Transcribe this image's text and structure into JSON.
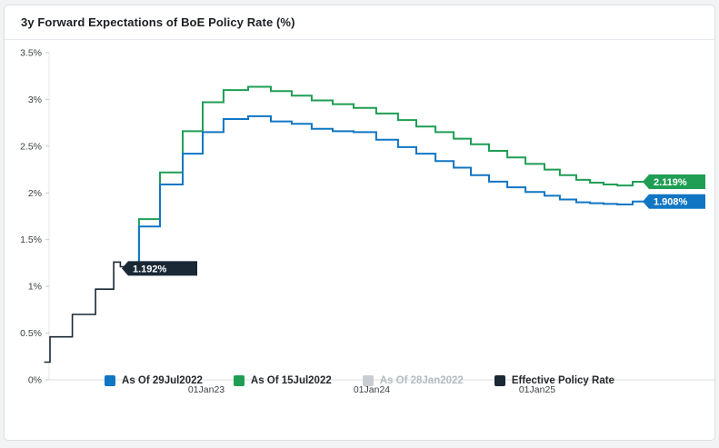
{
  "title": "3y Forward Expectations of BoE Policy Rate (%)",
  "colors": {
    "blue": "#1076c4",
    "green": "#1f9e54",
    "gray": "#c9cdd1",
    "dark": "#1a2835",
    "axis_text": "#3c4045",
    "axis_line": "#e3e7ea",
    "tick_line": "#c7ccd1",
    "baseline": "#d8dce0"
  },
  "chart_data": {
    "type": "line",
    "step": true,
    "title": "3y Forward Expectations of BoE Policy Rate (%)",
    "xlabel": "",
    "ylabel": "%",
    "ylim": [
      0,
      3.5
    ],
    "xlim": [
      2022.0,
      2025.78
    ],
    "grid": false,
    "legend_position": "bottom",
    "yticks": [
      {
        "v": 0.0,
        "label": "0%"
      },
      {
        "v": 0.5,
        "label": "0.5%"
      },
      {
        "v": 1.0,
        "label": "1%"
      },
      {
        "v": 1.5,
        "label": "1.5%"
      },
      {
        "v": 2.0,
        "label": "2%"
      },
      {
        "v": 2.5,
        "label": "2.5%"
      },
      {
        "v": 3.0,
        "label": "3%"
      },
      {
        "v": 3.5,
        "label": "3.5%"
      }
    ],
    "xticks": [
      {
        "v": 2023.0,
        "label": "01Jan23"
      },
      {
        "v": 2024.0,
        "label": "01Jan24"
      },
      {
        "v": 2025.0,
        "label": "01Jan25"
      }
    ],
    "series": [
      {
        "name": "As Of 29Jul2022",
        "color": "#1076c4",
        "z": 3,
        "end_label": "1.908%",
        "points": [
          [
            2022.593,
            1.192
          ],
          [
            2022.593,
            1.64
          ],
          [
            2022.72,
            2.09
          ],
          [
            2022.857,
            2.42
          ],
          [
            2022.978,
            2.65
          ],
          [
            2023.104,
            2.79
          ],
          [
            2023.253,
            2.82
          ],
          [
            2023.39,
            2.765
          ],
          [
            2023.516,
            2.74
          ],
          [
            2023.637,
            2.685
          ],
          [
            2023.764,
            2.66
          ],
          [
            2023.89,
            2.65
          ],
          [
            2024.027,
            2.57
          ],
          [
            2024.159,
            2.49
          ],
          [
            2024.269,
            2.42
          ],
          [
            2024.385,
            2.34
          ],
          [
            2024.495,
            2.27
          ],
          [
            2024.599,
            2.19
          ],
          [
            2024.709,
            2.12
          ],
          [
            2024.819,
            2.06
          ],
          [
            2024.929,
            2.01
          ],
          [
            2025.044,
            1.97
          ],
          [
            2025.137,
            1.93
          ],
          [
            2025.236,
            1.9
          ],
          [
            2025.319,
            1.89
          ],
          [
            2025.401,
            1.882
          ],
          [
            2025.484,
            1.876
          ],
          [
            2025.577,
            1.908
          ],
          [
            2025.645,
            1.908
          ]
        ]
      },
      {
        "name": "As Of 15Jul2022",
        "color": "#1f9e54",
        "z": 2,
        "end_label": "2.119%",
        "points": [
          [
            2022.593,
            1.192
          ],
          [
            2022.593,
            1.72
          ],
          [
            2022.72,
            2.22
          ],
          [
            2022.857,
            2.66
          ],
          [
            2022.978,
            2.97
          ],
          [
            2023.104,
            3.1
          ],
          [
            2023.253,
            3.135
          ],
          [
            2023.39,
            3.09
          ],
          [
            2023.516,
            3.04
          ],
          [
            2023.637,
            2.99
          ],
          [
            2023.764,
            2.95
          ],
          [
            2023.89,
            2.91
          ],
          [
            2024.027,
            2.85
          ],
          [
            2024.159,
            2.78
          ],
          [
            2024.269,
            2.71
          ],
          [
            2024.385,
            2.65
          ],
          [
            2024.495,
            2.58
          ],
          [
            2024.599,
            2.52
          ],
          [
            2024.709,
            2.45
          ],
          [
            2024.819,
            2.38
          ],
          [
            2024.929,
            2.31
          ],
          [
            2025.044,
            2.25
          ],
          [
            2025.137,
            2.19
          ],
          [
            2025.236,
            2.14
          ],
          [
            2025.319,
            2.11
          ],
          [
            2025.401,
            2.09
          ],
          [
            2025.484,
            2.08
          ],
          [
            2025.577,
            2.119
          ],
          [
            2025.645,
            2.119
          ]
        ]
      },
      {
        "name": "As Of 28Jan2022",
        "color": "#c9cdd1",
        "z": 0,
        "hidden": true,
        "points": []
      },
      {
        "name": "Effective Policy Rate",
        "color": "#1a2835",
        "z": 1,
        "end_label": "1.192%",
        "label_inline": true,
        "points": [
          [
            2022.02,
            0.19
          ],
          [
            2022.055,
            0.46
          ],
          [
            2022.19,
            0.7
          ],
          [
            2022.33,
            0.97
          ],
          [
            2022.44,
            1.26
          ],
          [
            2022.48,
            1.21
          ],
          [
            2022.55,
            1.192
          ],
          [
            2022.593,
            1.192
          ]
        ]
      }
    ]
  }
}
